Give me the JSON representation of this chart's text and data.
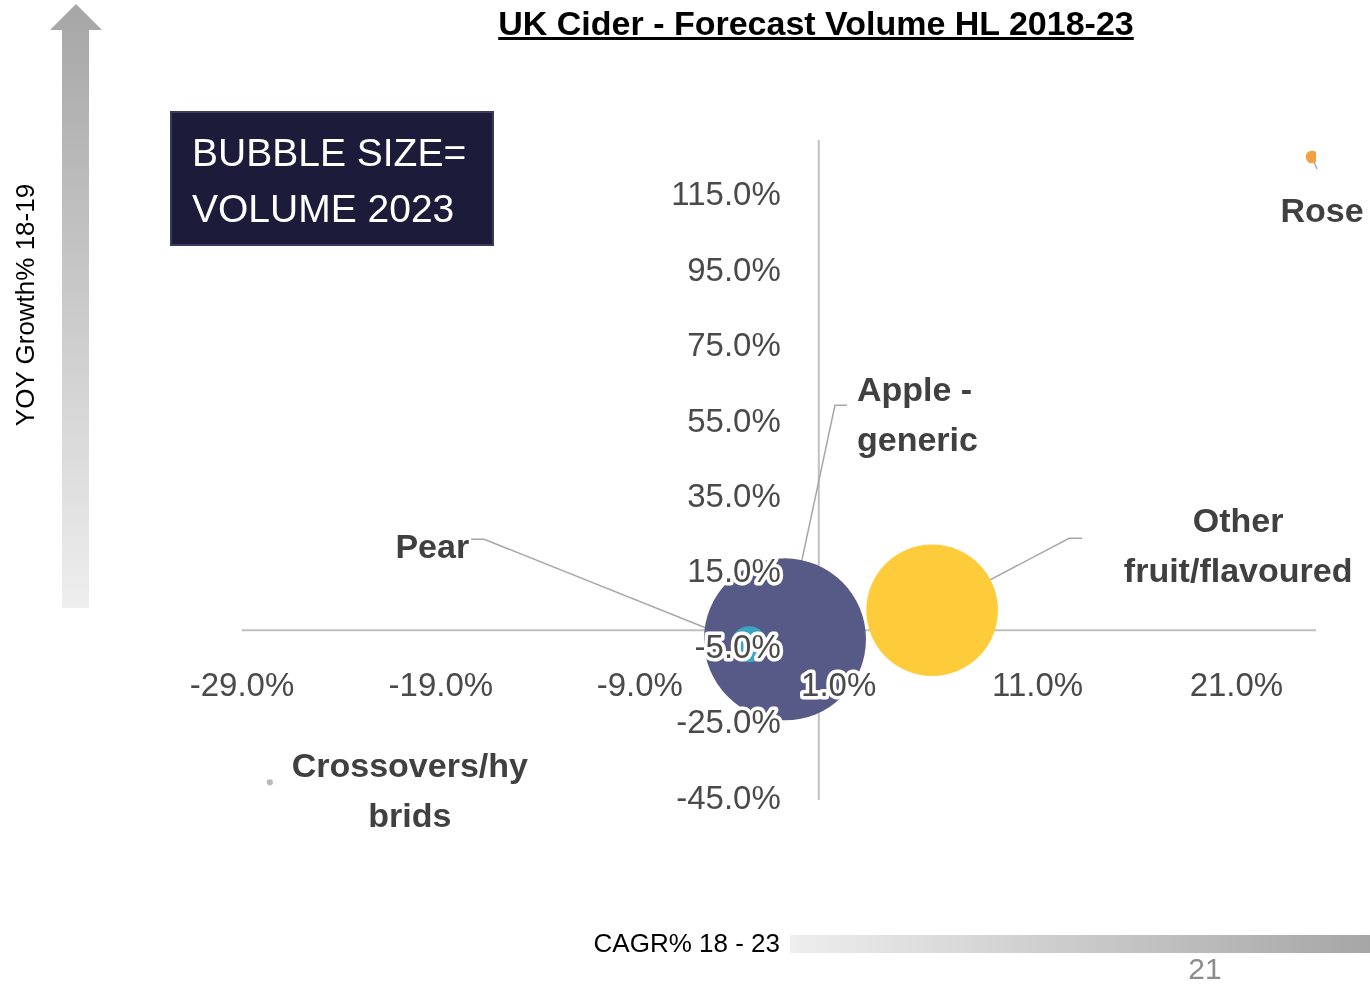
{
  "chart_data": {
    "type": "bubble",
    "title": "UK Cider - Forecast Volume HL 2018-23",
    "xlabel": "CAGR% 18 - 23",
    "annotations": [
      "BUBBLE SIZE= VOLUME 2023",
      "21",
      "YOY Growth% 18-19"
    ],
    "xlim": [
      -29,
      25
    ],
    "ylim": [
      -45,
      130
    ],
    "xticks": [
      {
        "value": -29,
        "label": "-29.0%"
      },
      {
        "value": -19,
        "label": "-19.0%"
      },
      {
        "value": -9,
        "label": "-9.0%"
      },
      {
        "value": 1,
        "label": "1.0%"
      },
      {
        "value": 11,
        "label": "11.0%"
      },
      {
        "value": 21,
        "label": "21.0%"
      }
    ],
    "yticks": [
      {
        "value": -45,
        "label": "-45.0%"
      },
      {
        "value": -25,
        "label": "-25.0%"
      },
      {
        "value": -5,
        "label": "-5.0%"
      },
      {
        "value": 15,
        "label": "15.0%"
      },
      {
        "value": 35,
        "label": "35.0%"
      },
      {
        "value": 55,
        "label": "55.0%"
      },
      {
        "value": 75,
        "label": "75.0%"
      },
      {
        "value": 95,
        "label": "95.0%"
      },
      {
        "value": 115,
        "label": "115.0%"
      }
    ],
    "series": [
      {
        "name": "Apple - generic",
        "color": "#575a86",
        "x": [
          -1.7
        ],
        "values": [
          -2.4
        ],
        "sizes": [
          1
        ]
      },
      {
        "name": "Other fruit/flavoured",
        "color": "#fecb3a",
        "x": [
          5.7
        ],
        "values": [
          5.3
        ],
        "sizes": [
          0.66
        ]
      },
      {
        "name": "Pear",
        "color": "#3aa5c0",
        "x": [
          -3.5
        ],
        "values": [
          -3.7
        ],
        "sizes": [
          0.05
        ]
      },
      {
        "name": "Rose",
        "color": "#f4a040",
        "x": [
          24.8
        ],
        "values": [
          125.5
        ],
        "sizes": [
          0.006
        ]
      },
      {
        "name": "Crossovers/hybrids",
        "color": "#bbbbbb",
        "x": [
          -27.6
        ],
        "values": [
          -40.3
        ],
        "sizes": [
          0.0015
        ]
      }
    ]
  }
}
